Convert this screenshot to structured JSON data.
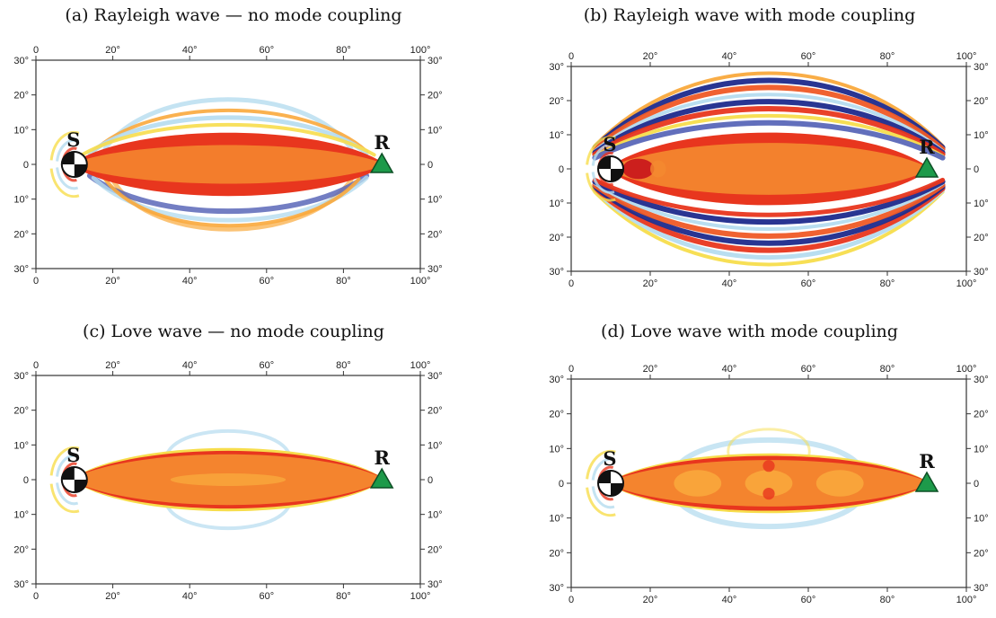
{
  "figure": {
    "panels": [
      {
        "id": "a",
        "title": "(a) Rayleigh wave — no mode coupling",
        "variant": "rayleigh-simple"
      },
      {
        "id": "b",
        "title": "(b) Rayleigh wave with mode coupling",
        "variant": "rayleigh-coupled"
      },
      {
        "id": "c",
        "title": "(c) Love wave — no mode coupling",
        "variant": "love-simple"
      },
      {
        "id": "d",
        "title": "(d) Love wave with mode coupling",
        "variant": "love-coupled"
      }
    ],
    "x_ticks": [
      "0",
      "20°",
      "40°",
      "60°",
      "80°",
      "100°"
    ],
    "y_ticks": [
      "30°",
      "20°",
      "10°",
      "0",
      "10°",
      "20°",
      "30°"
    ],
    "source_label": "S",
    "receiver_label": "R",
    "colors": {
      "deep_red": "#c8141c",
      "red": "#e8361e",
      "orange_red": "#ef5a26",
      "orange": "#f4892f",
      "light_orange": "#f9a93c",
      "yellow": "#f7dd4c",
      "light_blue": "#b5dcef",
      "blue": "#5a67b8",
      "dark_blue": "#1d2a8c",
      "receiver_green": "#1d9a4a"
    }
  }
}
